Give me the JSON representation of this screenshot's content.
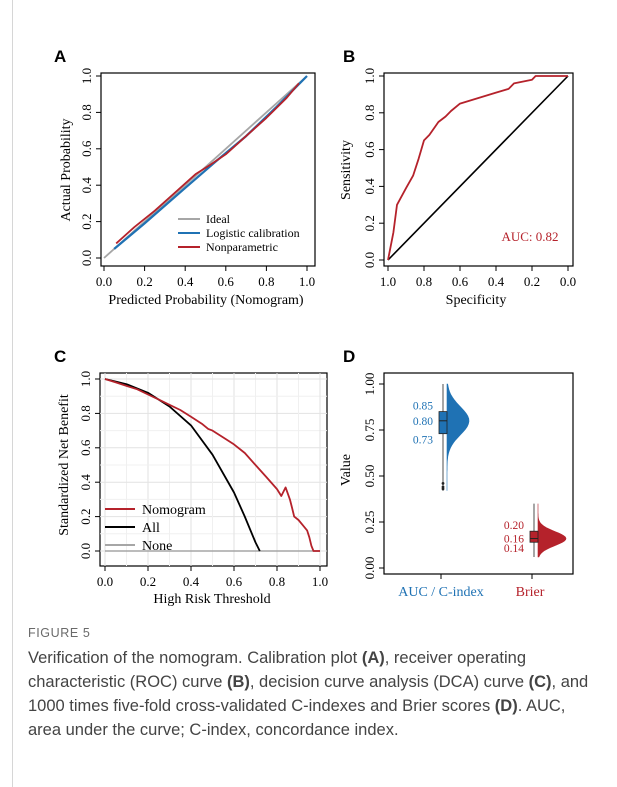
{
  "caption": {
    "label": "FIGURE 5",
    "part1": "Verification of the nomogram. Calibration plot ",
    "refA": "(A)",
    "part2": ", receiver operating characteristic (ROC) curve ",
    "refB": "(B)",
    "part3": ", decision curve analysis (DCA) curve ",
    "refC": "(C)",
    "part4": ", and 1000 times five-fold cross-validated C-indexes and Brier scores ",
    "refD": "(D)",
    "part5": ". AUC, area under the curve; C-index, concordance index."
  },
  "colors": {
    "red": "#b5222b",
    "blue": "#1f72b4",
    "gray": "#a6a6a6",
    "black": "#000000"
  },
  "chart_data": [
    {
      "panel": "A",
      "type": "line",
      "xlabel": "Predicted Probability (Nomogram)",
      "ylabel": "Actual Probability",
      "xlim": [
        0,
        1
      ],
      "ylim": [
        0,
        1
      ],
      "xticks": [
        "0.0",
        "0.2",
        "0.4",
        "0.6",
        "0.8",
        "1.0"
      ],
      "yticks": [
        "0.0",
        "0.2",
        "0.4",
        "0.6",
        "0.8",
        "1.0"
      ],
      "legend": [
        "Ideal",
        "Logistic calibration",
        "Nonparametric"
      ],
      "legend_position": "bottom-right",
      "series": [
        {
          "name": "Ideal",
          "color": "#a6a6a6",
          "x": [
            0,
            1
          ],
          "y": [
            0,
            1
          ]
        },
        {
          "name": "Logistic calibration",
          "color": "#1f72b4",
          "x": [
            0.05,
            0.2,
            0.4,
            0.55,
            0.7,
            0.85,
            1.0
          ],
          "y": [
            0.05,
            0.19,
            0.385,
            0.53,
            0.67,
            0.83,
            1.0
          ]
        },
        {
          "name": "Nonparametric",
          "color": "#b5222b",
          "x": [
            0.06,
            0.15,
            0.25,
            0.35,
            0.45,
            0.52,
            0.6,
            0.7,
            0.8,
            0.9,
            0.96
          ],
          "y": [
            0.08,
            0.17,
            0.26,
            0.36,
            0.46,
            0.51,
            0.57,
            0.67,
            0.77,
            0.88,
            0.96
          ]
        }
      ]
    },
    {
      "panel": "B",
      "type": "line",
      "xlabel": "Specificity",
      "ylabel": "Sensitivity",
      "xlim": [
        1,
        0
      ],
      "ylim": [
        0,
        1
      ],
      "xticks": [
        "1.0",
        "0.8",
        "0.6",
        "0.4",
        "0.2",
        "0.0"
      ],
      "yticks": [
        "0.0",
        "0.2",
        "0.4",
        "0.6",
        "0.8",
        "1.0"
      ],
      "annotation": "AUC: 0.82",
      "series": [
        {
          "name": "",
          "color": "#b5222b",
          "x": [
            1.0,
            0.97,
            0.95,
            0.9,
            0.86,
            0.83,
            0.8,
            0.77,
            0.72,
            0.68,
            0.65,
            0.6,
            0.5,
            0.4,
            0.33,
            0.3,
            0.2,
            0.18,
            0.05,
            0.0
          ],
          "y": [
            0.0,
            0.15,
            0.3,
            0.39,
            0.46,
            0.55,
            0.65,
            0.68,
            0.75,
            0.78,
            0.81,
            0.85,
            0.88,
            0.91,
            0.93,
            0.96,
            0.98,
            1.0,
            1.0,
            1.0
          ]
        },
        {
          "name": "",
          "color": "#000000",
          "x": [
            1,
            0
          ],
          "y": [
            0,
            1
          ]
        }
      ]
    },
    {
      "panel": "C",
      "type": "line",
      "xlabel": "High Risk Threshold",
      "ylabel": "Standardized Net Benefit",
      "xlim": [
        0,
        1
      ],
      "ylim": [
        0,
        1
      ],
      "xticks": [
        "0.0",
        "0.2",
        "0.4",
        "0.6",
        "0.8",
        "1.0"
      ],
      "yticks": [
        "0.0",
        "0.2",
        "0.4",
        "0.6",
        "0.8",
        "1.0"
      ],
      "grid": true,
      "legend": [
        "Nomogram",
        "All",
        "None"
      ],
      "legend_position": "bottom-left",
      "series": [
        {
          "name": "Nomogram",
          "color": "#b5222b",
          "x": [
            0,
            0.05,
            0.1,
            0.15,
            0.2,
            0.25,
            0.3,
            0.35,
            0.4,
            0.45,
            0.48,
            0.5,
            0.55,
            0.6,
            0.65,
            0.7,
            0.75,
            0.8,
            0.82,
            0.84,
            0.86,
            0.87,
            0.88,
            0.9,
            0.92,
            0.94,
            0.95,
            0.96,
            0.97,
            1.0
          ],
          "y": [
            1.0,
            0.98,
            0.96,
            0.94,
            0.91,
            0.88,
            0.85,
            0.82,
            0.78,
            0.74,
            0.71,
            0.7,
            0.66,
            0.62,
            0.57,
            0.5,
            0.43,
            0.36,
            0.32,
            0.37,
            0.3,
            0.25,
            0.2,
            0.18,
            0.15,
            0.12,
            0.08,
            0.03,
            0.0,
            0.0
          ]
        },
        {
          "name": "All",
          "color": "#000000",
          "x": [
            0,
            0.1,
            0.2,
            0.3,
            0.4,
            0.5,
            0.6,
            0.65,
            0.7,
            0.72
          ],
          "y": [
            1.0,
            0.97,
            0.92,
            0.84,
            0.73,
            0.56,
            0.34,
            0.2,
            0.05,
            0.0
          ]
        },
        {
          "name": "None",
          "color": "#a6a6a6",
          "x": [
            0,
            1
          ],
          "y": [
            0,
            0
          ]
        }
      ]
    },
    {
      "panel": "D",
      "type": "violin",
      "xlabel": "",
      "ylabel": "Value",
      "ylim": [
        0,
        1
      ],
      "yticks": [
        "0.00",
        "0.25",
        "0.50",
        "0.75",
        "1.00"
      ],
      "categories": [
        "AUC / C-index",
        "Brier"
      ],
      "series": [
        {
          "name": "AUC / C-index",
          "color": "#1f72b4",
          "q3": 0.85,
          "median": 0.8,
          "q1": 0.73,
          "labels": [
            "0.85",
            "0.80",
            "0.73"
          ],
          "min": 0.42,
          "max": 1.0
        },
        {
          "name": "Brier",
          "color": "#b5222b",
          "q3": 0.2,
          "median": 0.16,
          "q1": 0.14,
          "labels": [
            "0.20",
            "0.16",
            "0.14"
          ],
          "min": 0.06,
          "max": 0.35
        }
      ]
    }
  ],
  "panel_labels": [
    "A",
    "B",
    "C",
    "D"
  ]
}
